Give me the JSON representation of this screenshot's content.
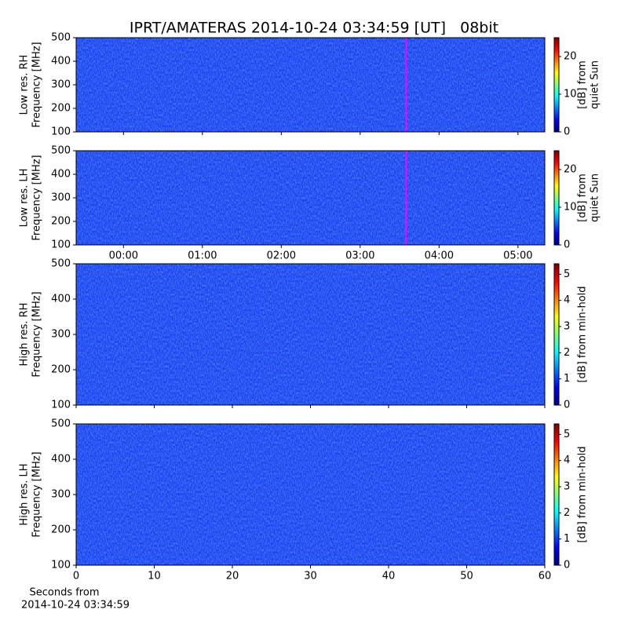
{
  "title": "IPRT/AMATERAS 2014-10-24 03:34:59 [UT]   08bit",
  "chart_data": [
    {
      "type": "heatmap",
      "ylabel": [
        "Low res. RH",
        "Frequency [MHz]"
      ],
      "ylim": [
        100,
        500
      ],
      "yticks": [
        100,
        200,
        300,
        400,
        500
      ],
      "xlim": [
        -0.6,
        5.34
      ],
      "xticks": [
        0,
        1,
        2,
        3,
        4,
        5
      ],
      "markers": [
        {
          "x": 3.583,
          "color": "#ff00ff"
        }
      ],
      "colorbar_label": [
        "[dB] from",
        "quiet Sun"
      ],
      "clim": [
        0,
        25
      ],
      "cticks": [
        0,
        10,
        20
      ]
    },
    {
      "type": "heatmap",
      "ylabel": [
        "Low res. LH",
        "Frequency [MHz]"
      ],
      "ylim": [
        100,
        500
      ],
      "yticks": [
        100,
        200,
        300,
        400,
        500
      ],
      "xlim": [
        -0.6,
        5.34
      ],
      "xticks": [
        {
          "value": 0,
          "label": "00:00"
        },
        {
          "value": 1,
          "label": "01:00"
        },
        {
          "value": 2,
          "label": "02:00"
        },
        {
          "value": 3,
          "label": "03:00"
        },
        {
          "value": 4,
          "label": "04:00"
        },
        {
          "value": 5,
          "label": "05:00"
        }
      ],
      "markers": [
        {
          "x": 3.583,
          "color": "#ff00ff"
        }
      ],
      "colorbar_label": [
        "[dB] from",
        "quiet Sun"
      ],
      "clim": [
        0,
        25
      ],
      "cticks": [
        0,
        10,
        20
      ]
    },
    {
      "type": "heatmap",
      "ylabel": [
        "High res. RH",
        "Frequency [MHz]"
      ],
      "ylim": [
        100,
        500
      ],
      "yticks": [
        100,
        200,
        300,
        400,
        500
      ],
      "xlim": [
        0,
        60
      ],
      "xticks": [
        0,
        10,
        20,
        30,
        40,
        50,
        60
      ],
      "colorbar_label": [
        "[dB] from min-hold"
      ],
      "clim": [
        0,
        5.4
      ],
      "cticks": [
        0,
        1,
        2,
        3,
        4,
        5
      ]
    },
    {
      "type": "heatmap",
      "ylabel": [
        "High res. LH",
        "Frequency [MHz]"
      ],
      "ylim": [
        100,
        500
      ],
      "yticks": [
        100,
        200,
        300,
        400,
        500
      ],
      "xlim": [
        0,
        60
      ],
      "xticks": [
        {
          "value": 0,
          "label": "0"
        },
        {
          "value": 10,
          "label": "10"
        },
        {
          "value": 20,
          "label": "20"
        },
        {
          "value": 30,
          "label": "30"
        },
        {
          "value": 40,
          "label": "40"
        },
        {
          "value": 50,
          "label": "50"
        },
        {
          "value": 60,
          "label": "60"
        }
      ],
      "xlabel": [
        "Seconds from",
        "2014-10-24 03:34:59"
      ],
      "colorbar_label": [
        "[dB] from min-hold"
      ],
      "clim": [
        0,
        5.4
      ],
      "cticks": [
        0,
        1,
        2,
        3,
        4,
        5
      ]
    }
  ]
}
